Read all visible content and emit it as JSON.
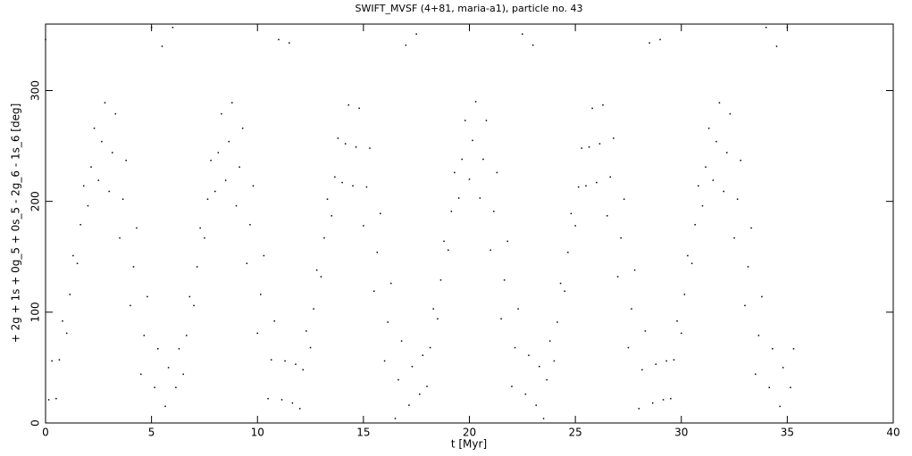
{
  "chart_data": {
    "type": "scatter",
    "title": "SWIFT_MVSF (4+81, maria-a1), particle no. 43",
    "xlabel": "t [Myr]",
    "ylabel": "+ 2g + 1s + 0g_5 + 0s_5 - 2g_6 - 1s_6 [deg]",
    "xlim": [
      0,
      40
    ],
    "ylim": [
      0,
      360
    ],
    "xticks": [
      0,
      5,
      10,
      15,
      20,
      25,
      30,
      35,
      40
    ],
    "yticks": [
      0,
      100,
      200,
      300
    ],
    "color": "#000000",
    "x": [
      0,
      0.15,
      0.3,
      0.5,
      0.65,
      0.8,
      1,
      1.15,
      1.3,
      1.5,
      1.65,
      1.8,
      2,
      2.15,
      2.3,
      2.5,
      2.65,
      2.8,
      3,
      3.15,
      3.3,
      3.5,
      3.65,
      3.8,
      4,
      4.15,
      4.3,
      4.5,
      4.65,
      4.8,
      5,
      5.15,
      5.3,
      5.5,
      5.65,
      5.8,
      6,
      6.15,
      6.3,
      6.5,
      6.65,
      6.8,
      7,
      7.15,
      7.3,
      7.5,
      7.65,
      7.8,
      8,
      8.15,
      8.3,
      8.5,
      8.65,
      8.8,
      9,
      9.15,
      9.3,
      9.5,
      9.65,
      9.8,
      10,
      10.15,
      10.3,
      10.5,
      10.65,
      10.8,
      11,
      11.15,
      11.3,
      11.5,
      11.65,
      11.8,
      12,
      12.15,
      12.3,
      12.5,
      12.65,
      12.8,
      13,
      13.15,
      13.3,
      13.5,
      13.65,
      13.8,
      14,
      14.15,
      14.3,
      14.5,
      14.65,
      14.8,
      15,
      15.15,
      15.3,
      15.5,
      15.65,
      15.8,
      16,
      16.15,
      16.3,
      16.5,
      16.65,
      16.8,
      17,
      17.15,
      17.3,
      17.5,
      17.65,
      17.8,
      18,
      18.15,
      18.3,
      18.5,
      18.65,
      18.8,
      19,
      19.15,
      19.3,
      19.5,
      19.65,
      19.8,
      20,
      20.15,
      20.3,
      20.5,
      20.65,
      20.8,
      21,
      21.15,
      21.3,
      21.5,
      21.65,
      21.8,
      22,
      22.15,
      22.3,
      22.5,
      22.65,
      22.8,
      23,
      23.15,
      23.3,
      23.5,
      23.65,
      23.8,
      24,
      24.15,
      24.3,
      24.5,
      24.65,
      24.8,
      25,
      25.15,
      25.3,
      25.5,
      25.65,
      25.8,
      26,
      26.15,
      26.3,
      26.5,
      26.65,
      26.8,
      27,
      27.15,
      27.3,
      27.5,
      27.65,
      27.8,
      28,
      28.15,
      28.3,
      28.5,
      28.65,
      28.8,
      29,
      29.15,
      29.3,
      29.5,
      29.65,
      29.8,
      30,
      30.15,
      30.3,
      30.5,
      30.65,
      30.8,
      31,
      31.15,
      31.3,
      31.5,
      31.65,
      31.8,
      32,
      32.15,
      32.3,
      32.5,
      32.65,
      32.8,
      33,
      33.15,
      33.3,
      33.5,
      33.65,
      33.8,
      34,
      34.15,
      34.3,
      34.5,
      34.65,
      34.8,
      35,
      35.15,
      35.3
    ],
    "values": [
      346,
      21,
      56,
      22,
      57,
      92,
      81,
      116,
      151,
      144,
      179,
      214,
      196,
      231,
      266,
      219,
      254,
      289,
      209,
      244,
      279,
      167,
      202,
      237,
      106,
      141,
      176,
      44,
      79,
      114,
      357,
      32,
      67,
      340,
      15,
      50,
      357,
      32,
      67,
      44,
      79,
      114,
      106,
      141,
      176,
      167,
      202,
      237,
      209,
      244,
      279,
      219,
      254,
      289,
      196,
      231,
      266,
      144,
      179,
      214,
      81,
      116,
      151,
      22,
      57,
      92,
      346,
      21,
      56,
      343,
      18,
      53,
      13,
      48,
      83,
      68,
      103,
      138,
      132,
      167,
      202,
      187,
      222,
      257,
      217,
      252,
      287,
      214,
      249,
      284,
      178,
      213,
      248,
      119,
      154,
      189,
      56,
      91,
      126,
      4,
      39,
      74,
      341,
      16,
      51,
      351,
      26,
      61,
      33,
      68,
      103,
      94,
      129,
      164,
      156,
      191,
      226,
      203,
      238,
      273,
      220,
      255,
      290,
      203,
      238,
      273,
      156,
      191,
      226,
      94,
      129,
      164,
      33,
      68,
      103,
      351,
      26,
      61,
      341,
      16,
      51,
      4,
      39,
      74,
      56,
      91,
      126,
      119,
      154,
      189,
      178,
      213,
      248,
      214,
      249,
      284,
      217,
      252,
      287,
      187,
      222,
      257,
      132,
      167,
      202,
      68,
      103,
      138,
      13,
      48,
      83,
      343,
      18,
      53,
      346,
      21,
      56,
      22,
      57,
      92,
      81,
      116,
      151,
      144,
      179,
      214,
      196,
      231,
      266,
      219,
      254,
      289,
      209,
      244,
      279,
      167,
      202,
      237,
      106,
      141,
      176,
      44,
      79,
      114,
      357,
      32,
      67,
      340,
      15,
      50,
      357,
      32,
      67
    ]
  }
}
